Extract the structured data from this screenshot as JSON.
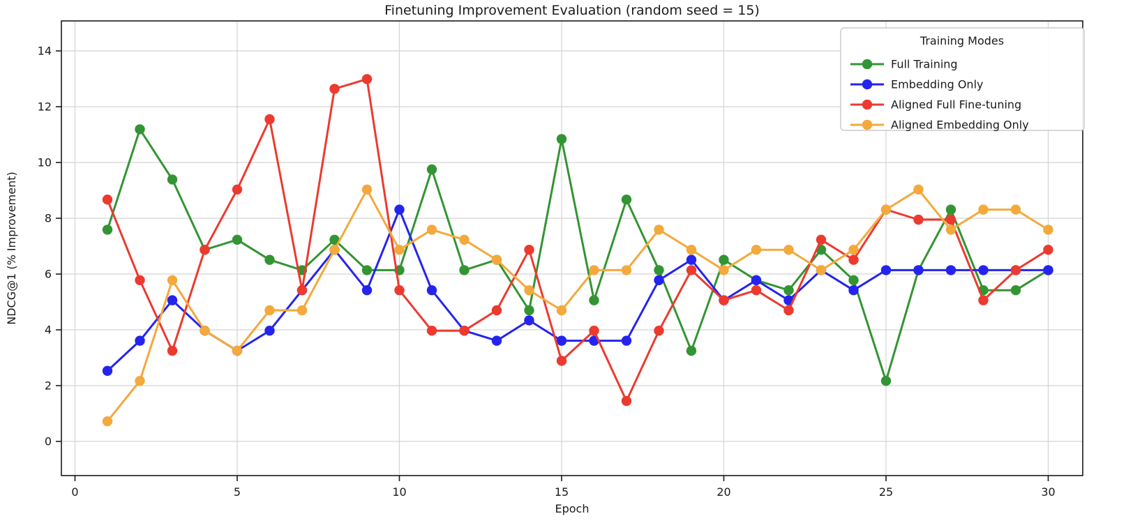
{
  "chart_data": {
    "type": "line",
    "title": "Finetuning Improvement Evaluation (random seed = 15)",
    "xlabel": "Epoch",
    "ylabel": "NDCG@1 (% Improvement)",
    "legend_title": "Training Modes",
    "legend_position": "upper right",
    "grid": true,
    "xlim": [
      -0.45,
      31.05
    ],
    "ylim": [
      -1.23,
      15.08
    ],
    "xticks": [
      0,
      5,
      10,
      15,
      20,
      25,
      30
    ],
    "yticks": [
      0,
      2,
      4,
      6,
      8,
      10,
      12,
      14
    ],
    "x": [
      1,
      2,
      3,
      4,
      5,
      6,
      7,
      8,
      9,
      10,
      11,
      12,
      13,
      14,
      15,
      16,
      17,
      18,
      19,
      20,
      21,
      22,
      23,
      24,
      25,
      26,
      27,
      28,
      29,
      30
    ],
    "series": [
      {
        "name": "Full Training",
        "color": "#339433",
        "values": [
          7.59,
          11.19,
          9.39,
          6.87,
          7.23,
          6.51,
          6.14,
          7.23,
          6.14,
          6.14,
          9.75,
          6.14,
          6.51,
          4.7,
          10.84,
          5.06,
          8.67,
          6.14,
          3.25,
          6.51,
          5.78,
          5.42,
          6.87,
          5.78,
          2.17,
          6.14,
          8.31,
          5.42,
          5.42,
          6.14
        ]
      },
      {
        "name": "Embedding Only",
        "color": "#2424ee",
        "values": [
          2.53,
          3.61,
          5.06,
          3.97,
          3.25,
          3.97,
          5.42,
          6.87,
          5.42,
          8.31,
          5.42,
          3.97,
          3.61,
          4.34,
          3.61,
          3.61,
          3.61,
          5.78,
          6.51,
          5.06,
          5.78,
          5.06,
          6.14,
          5.42,
          6.14,
          6.14,
          6.14,
          6.14,
          6.14,
          6.14
        ]
      },
      {
        "name": "Aligned Full Fine-tuning",
        "color": "#ec3a2f",
        "values": [
          8.67,
          5.78,
          3.25,
          6.87,
          9.03,
          11.55,
          5.42,
          12.64,
          12.99,
          5.42,
          3.97,
          3.97,
          4.7,
          6.87,
          2.89,
          3.97,
          1.45,
          3.97,
          6.14,
          5.06,
          5.42,
          4.7,
          7.23,
          6.51,
          8.31,
          7.95,
          7.95,
          5.06,
          6.14,
          6.87
        ]
      },
      {
        "name": "Aligned Embedding Only",
        "color": "#f3a93c",
        "values": [
          0.72,
          2.17,
          5.78,
          3.97,
          3.25,
          4.7,
          4.7,
          6.87,
          9.03,
          6.87,
          7.59,
          7.23,
          6.51,
          5.42,
          4.7,
          6.14,
          6.14,
          7.59,
          6.87,
          6.14,
          6.87,
          6.87,
          6.14,
          6.87,
          8.31,
          9.03,
          7.59,
          8.31,
          8.31,
          7.59
        ]
      }
    ],
    "style": {
      "grid_color": "#d4d4d4",
      "frame_color": "#1a1a1a",
      "background": "#ffffff",
      "legend_border": "#cccccc"
    }
  }
}
